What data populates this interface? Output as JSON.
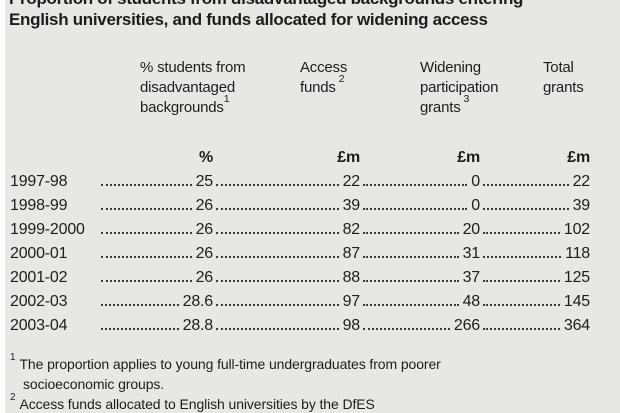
{
  "title": {
    "line1": "Proportion of students from disadvantaged backgrounds entering",
    "line2": "English universities, and funds allocated for widening access"
  },
  "chart_data": {
    "type": "table",
    "title": "Proportion of students from disadvantaged backgrounds entering English universities, and funds allocated for widening access",
    "columns": [
      "",
      "% students from disadvantaged backgrounds",
      "Access funds",
      "Widening participation grants",
      "Total grants"
    ],
    "units": [
      "",
      "%",
      "£m",
      "£m",
      "£m"
    ],
    "rows": [
      [
        "1997-98",
        25,
        22,
        0,
        22
      ],
      [
        "1998-99",
        26,
        39,
        0,
        39
      ],
      [
        "1999-2000",
        26,
        82,
        20,
        102
      ],
      [
        "2000-01",
        26,
        87,
        31,
        118
      ],
      [
        "2001-02",
        26,
        88,
        37,
        125
      ],
      [
        "2002-03",
        28.6,
        97,
        48,
        145
      ],
      [
        "2003-04",
        28.8,
        98,
        266,
        364
      ]
    ]
  },
  "header": {
    "col1": {
      "lines": [
        "% students from",
        "disadvantaged",
        "backgrounds"
      ],
      "sup": "1"
    },
    "col2": {
      "lines": [
        "Access",
        "funds"
      ],
      "sup": "2"
    },
    "col3": {
      "lines": [
        "Widening",
        "participation",
        "grants"
      ],
      "sup": "3"
    },
    "col4": {
      "lines": [
        "Total",
        "grants"
      ]
    }
  },
  "footnotes": [
    {
      "sup": "1",
      "text": "The proportion applies to young full-time undergraduates from poorer socioeconomic groups."
    },
    {
      "sup": "2",
      "text": "Access funds allocated to English universities by the DfES"
    }
  ]
}
